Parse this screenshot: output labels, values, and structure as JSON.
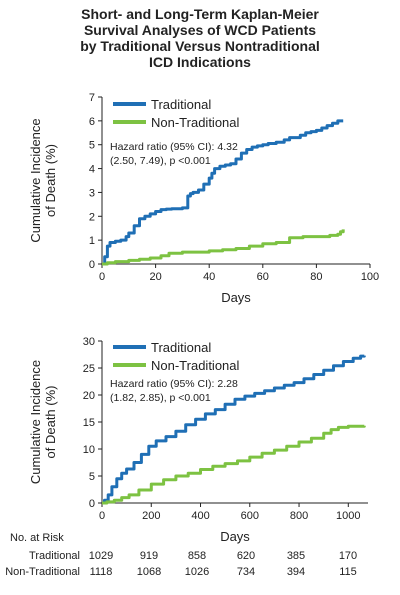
{
  "title": [
    "Short- and Long-Term Kaplan-Meier",
    "Survival Analyses of WCD Patients",
    "by Traditional Versus Nontraditional",
    "ICD Indications"
  ],
  "colors": {
    "traditional": "#1f6fb5",
    "non_traditional": "#7dc242",
    "axis": "#222222"
  },
  "chart_data": [
    {
      "type": "line",
      "xlabel": "Days",
      "ylabel": [
        "Cumulative Incidence",
        "of Death (%)"
      ],
      "xlim": [
        0,
        100
      ],
      "ylim": [
        0,
        7
      ],
      "x_ticks": [
        0,
        20,
        40,
        60,
        80,
        100
      ],
      "y_ticks": [
        0,
        1,
        2,
        3,
        4,
        5,
        6,
        7
      ],
      "legend": [
        "Traditional",
        "Non-Traditional"
      ],
      "annotation": [
        "Hazard ratio (95% CI): 4.32",
        "(2.50, 7.49), p <0.001"
      ],
      "series": [
        {
          "name": "Traditional",
          "x": [
            0,
            1,
            2,
            3,
            5,
            7,
            9,
            10,
            12,
            14,
            16,
            18,
            20,
            22,
            24,
            26,
            30,
            32,
            33,
            34,
            36,
            38,
            40,
            41,
            42,
            44,
            46,
            48,
            50,
            52,
            54,
            56,
            58,
            60,
            62,
            65,
            68,
            70,
            74,
            76,
            78,
            80,
            82,
            84,
            86,
            88,
            90
          ],
          "y": [
            0,
            0.3,
            0.75,
            0.9,
            0.95,
            1.0,
            1.15,
            1.3,
            1.6,
            1.9,
            2.0,
            2.1,
            2.2,
            2.28,
            2.3,
            2.32,
            2.35,
            2.85,
            2.95,
            3.0,
            3.1,
            3.35,
            3.6,
            3.8,
            4.0,
            4.1,
            4.15,
            4.2,
            4.4,
            4.65,
            4.8,
            4.9,
            4.95,
            5.0,
            5.05,
            5.1,
            5.2,
            5.3,
            5.4,
            5.5,
            5.55,
            5.6,
            5.7,
            5.8,
            5.9,
            6.0,
            6.0
          ]
        },
        {
          "name": "Non-Traditional",
          "x": [
            0,
            2,
            5,
            10,
            14,
            18,
            22,
            25,
            30,
            35,
            40,
            45,
            50,
            55,
            60,
            65,
            70,
            75,
            80,
            85,
            88,
            89,
            90
          ],
          "y": [
            0,
            0.05,
            0.1,
            0.15,
            0.2,
            0.25,
            0.35,
            0.45,
            0.5,
            0.5,
            0.55,
            0.6,
            0.65,
            0.75,
            0.85,
            0.9,
            1.1,
            1.15,
            1.15,
            1.2,
            1.25,
            1.35,
            1.45
          ]
        }
      ]
    },
    {
      "type": "line",
      "xlabel": "Days",
      "ylabel": [
        "Cumulative Incidence",
        "of Death (%)"
      ],
      "xlim": [
        0,
        1080
      ],
      "ylim": [
        0,
        30
      ],
      "x_ticks": [
        0,
        200,
        400,
        600,
        800,
        1000
      ],
      "y_ticks": [
        0,
        5,
        10,
        15,
        20,
        25,
        30
      ],
      "legend": [
        "Traditional",
        "Non-Traditional"
      ],
      "annotation": [
        "Hazard ratio (95% CI): 2.28",
        "(1.82, 2.85), p <0.001"
      ],
      "series": [
        {
          "name": "Traditional",
          "x": [
            0,
            10,
            25,
            40,
            60,
            80,
            100,
            130,
            160,
            190,
            220,
            260,
            300,
            340,
            380,
            420,
            460,
            500,
            540,
            580,
            620,
            660,
            700,
            740,
            780,
            820,
            860,
            900,
            940,
            980,
            1020,
            1050,
            1065
          ],
          "y": [
            0,
            0.5,
            1.5,
            3.0,
            4.5,
            5.5,
            6.3,
            7.5,
            9.0,
            10.5,
            11.5,
            12.3,
            13.3,
            14.5,
            15.5,
            16.5,
            17.3,
            18.3,
            19.2,
            19.8,
            20.3,
            20.8,
            21.3,
            21.8,
            22.3,
            23.0,
            23.8,
            24.6,
            25.4,
            26.2,
            26.8,
            27.2,
            27.3
          ]
        },
        {
          "name": "Non-Traditional",
          "x": [
            0,
            20,
            50,
            80,
            110,
            150,
            200,
            250,
            300,
            350,
            400,
            450,
            500,
            550,
            600,
            650,
            700,
            750,
            800,
            850,
            900,
            930,
            960,
            1000,
            1065
          ],
          "y": [
            0,
            0.2,
            0.5,
            1.0,
            1.5,
            2.4,
            3.5,
            4.3,
            5.0,
            5.5,
            6.2,
            6.8,
            7.3,
            7.8,
            8.5,
            9.2,
            9.8,
            10.5,
            11.3,
            12.0,
            12.9,
            13.6,
            14.0,
            14.2,
            14.3
          ]
        }
      ]
    }
  ],
  "risk_table": {
    "header": "No. at Risk",
    "rows": [
      {
        "label": "Traditional",
        "values": [
          "1029",
          "919",
          "858",
          "620",
          "385",
          "170"
        ]
      },
      {
        "label": "Non-Traditional",
        "values": [
          "1118",
          "1068",
          "1026",
          "734",
          "394",
          "115"
        ]
      }
    ]
  }
}
